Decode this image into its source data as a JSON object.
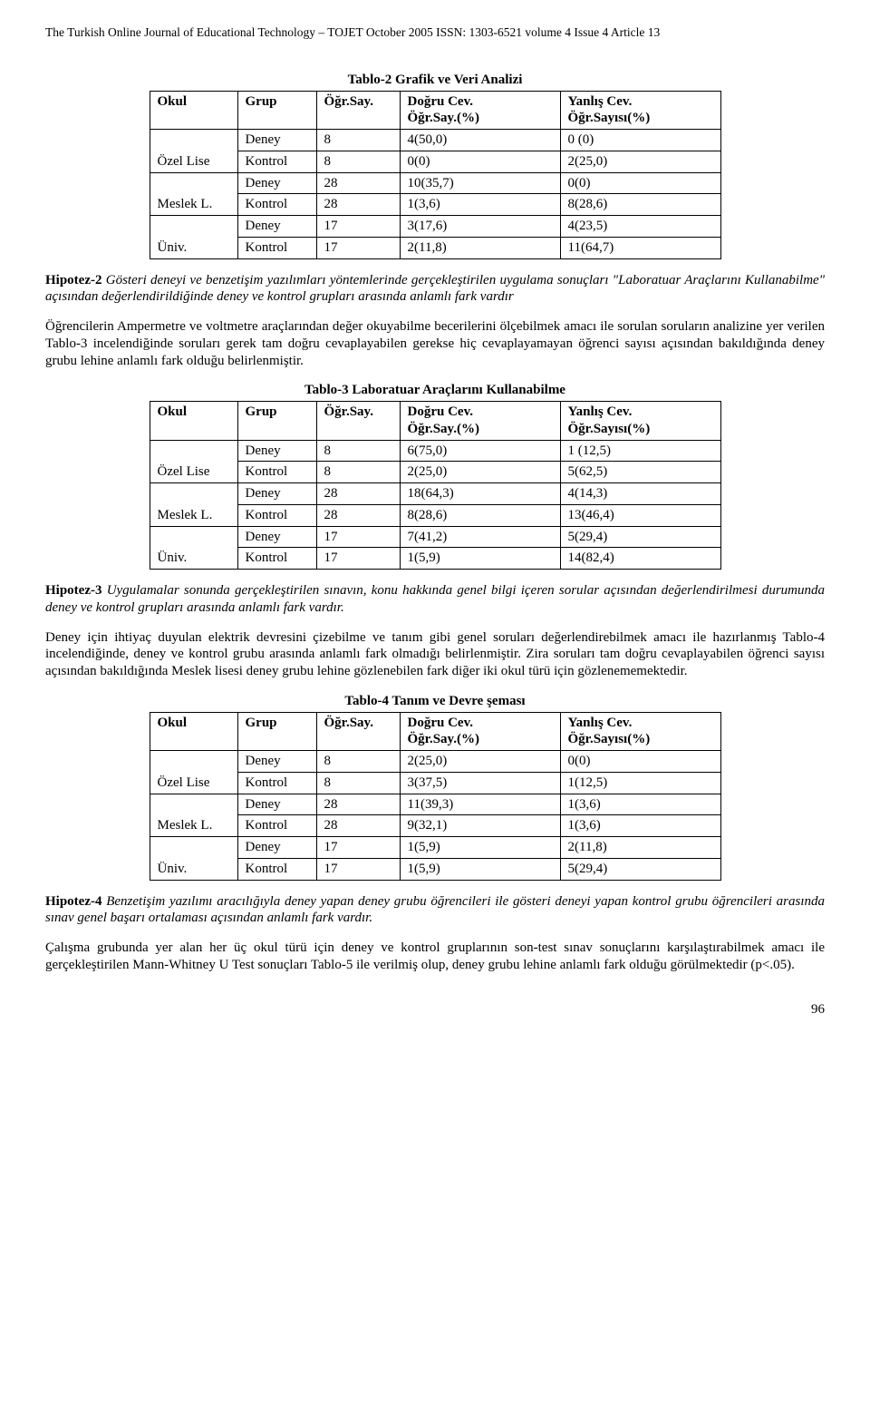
{
  "header": "The Turkish Online Journal of Educational Technology – TOJET October 2005 ISSN: 1303-6521 volume 4 Issue 4 Article 13",
  "page_number": "96",
  "th": {
    "okul": "Okul",
    "grup": "Grup",
    "say": "Öğr.Say.",
    "dogru_l1": "Doğru  Cev.",
    "dogru_l2": "Öğr.Say.(%)",
    "yanlis_l1": "Yanlış Cev.",
    "yanlis_l2": "Öğr.Sayısı(%)"
  },
  "okul_labels": {
    "ozel": "Özel Lise",
    "meslek": "Meslek L.",
    "univ": "Üniv."
  },
  "grup_labels": {
    "deney": "Deney",
    "kontrol": "Kontrol"
  },
  "table2": {
    "title": "Tablo-2 Grafik ve Veri Analizi",
    "rows": [
      {
        "say": "8",
        "d": "4(50,0)",
        "y": "0 (0)"
      },
      {
        "say": "8",
        "d": "0(0)",
        "y": "2(25,0)"
      },
      {
        "say": "28",
        "d": "10(35,7)",
        "y": "0(0)"
      },
      {
        "say": "28",
        "d": "1(3,6)",
        "y": "8(28,6)"
      },
      {
        "say": "17",
        "d": "3(17,6)",
        "y": "4(23,5)"
      },
      {
        "say": "17",
        "d": "2(11,8)",
        "y": "11(64,7)"
      }
    ]
  },
  "hypo2_lead": "Hipotez-2",
  "hypo2_text": " Gösteri deneyi ve benzetişim yazılımları yöntemlerinde gerçekleştirilen uygulama sonuçları \"Laboratuar Araçlarını Kullanabilme\" açısından değerlendirildiğinde deney ve kontrol grupları  arasında anlamlı fark vardır",
  "para_after_h2": "Öğrencilerin Ampermetre ve voltmetre araçlarından değer okuyabilme becerilerini ölçebilmek amacı ile sorulan soruların analizine yer verilen Tablo-3 incelendiğinde soruları gerek tam doğru cevaplayabilen gerekse hiç cevaplayamayan öğrenci sayısı açısından bakıldığında deney grubu lehine anlamlı fark olduğu belirlenmiştir.",
  "table3": {
    "title": "Tablo-3 Laboratuar Araçlarını Kullanabilme",
    "rows": [
      {
        "say": "8",
        "d": "6(75,0)",
        "y": "1 (12,5)"
      },
      {
        "say": "8",
        "d": "2(25,0)",
        "y": "5(62,5)"
      },
      {
        "say": "28",
        "d": "18(64,3)",
        "y": "4(14,3)"
      },
      {
        "say": "28",
        "d": "8(28,6)",
        "y": "13(46,4)"
      },
      {
        "say": "17",
        "d": "7(41,2)",
        "y": "5(29,4)"
      },
      {
        "say": "17",
        "d": "1(5,9)",
        "y": "14(82,4)"
      }
    ]
  },
  "hypo3_lead": "Hipotez-3",
  "hypo3_text": " Uygulamalar sonunda gerçekleştirilen sınavın,  konu hakkında genel bilgi içeren sorular açısından değerlendirilmesi durumunda deney ve kontrol grupları  arasında anlamlı fark vardır.",
  "para_after_h3": "Deney için ihtiyaç duyulan elektrik devresini çizebilme ve tanım gibi genel soruları değerlendirebilmek amacı ile hazırlanmış Tablo-4 incelendiğinde, deney ve kontrol grubu arasında anlamlı fark olmadığı belirlenmiştir. Zira soruları tam doğru cevaplayabilen öğrenci sayısı açısından bakıldığında Meslek lisesi deney grubu lehine gözlenebilen fark diğer iki okul türü  için gözlenememektedir.",
  "table4": {
    "title": "Tablo-4 Tanım ve Devre şeması",
    "rows": [
      {
        "say": "8",
        "d": "2(25,0)",
        "y": "0(0)"
      },
      {
        "say": "8",
        "d": "3(37,5)",
        "y": "1(12,5)"
      },
      {
        "say": "28",
        "d": "11(39,3)",
        "y": "1(3,6)"
      },
      {
        "say": "28",
        "d": "9(32,1)",
        "y": "1(3,6)"
      },
      {
        "say": "17",
        "d": "1(5,9)",
        "y": "2(11,8)"
      },
      {
        "say": "17",
        "d": "1(5,9)",
        "y": "5(29,4)"
      }
    ]
  },
  "hypo4_lead": "Hipotez-4",
  "hypo4_text": " Benzetişim yazılımı aracılığıyla  deney yapan deney grubu öğrencileri ile gösteri deneyi yapan kontrol grubu öğrencileri arasında sınav genel başarı ortalaması açısından anlamlı fark vardır.",
  "para_after_h4": "Çalışma grubunda yer alan her üç okul türü için deney ve kontrol gruplarının son-test sınav sonuçlarını karşılaştırabilmek amacı ile gerçekleştirilen Mann-Whitney U  Test sonuçları Tablo-5 ile verilmiş olup, deney grubu lehine anlamlı fark olduğu görülmektedir (p<.05)."
}
